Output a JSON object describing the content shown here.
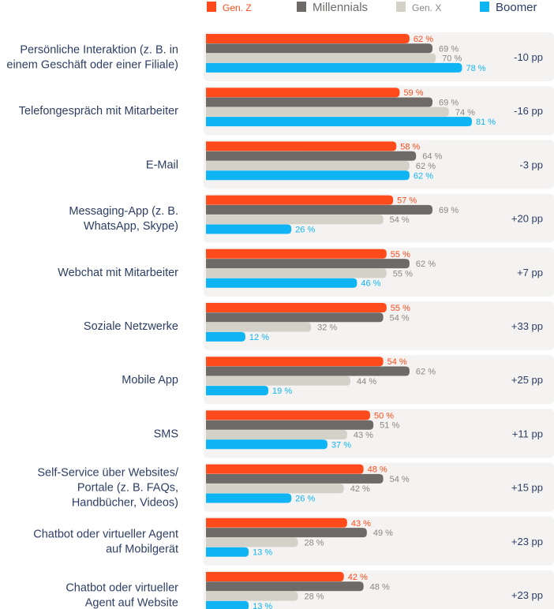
{
  "chart_data": {
    "type": "bar",
    "orientation": "horizontal",
    "value_suffix": " %",
    "xlim": [
      0,
      100
    ],
    "legend_position": "top",
    "series": [
      {
        "name": "Gen. Z",
        "color": "#FF4A1C",
        "values": [
          62,
          59,
          58,
          57,
          55,
          55,
          54,
          50,
          48,
          43,
          42
        ]
      },
      {
        "name": "Millennials",
        "color": "#6E6A67",
        "values": [
          69,
          69,
          64,
          69,
          62,
          54,
          62,
          51,
          54,
          49,
          48
        ]
      },
      {
        "name": "Gen. X",
        "color": "#D4D1C8",
        "values": [
          70,
          74,
          62,
          54,
          55,
          32,
          44,
          43,
          42,
          28,
          28
        ]
      },
      {
        "name": "Boomer",
        "color": "#0FB4F5",
        "values": [
          78,
          81,
          62,
          26,
          46,
          12,
          19,
          37,
          26,
          13,
          13
        ]
      }
    ],
    "categories": [
      [
        "Persönliche Interaktion (z. B. in",
        "einem Geschäft oder einer Filiale)"
      ],
      [
        "Telefongespräch mit Mitarbeiter"
      ],
      [
        "E-Mail"
      ],
      [
        "Messaging-App (z. B.",
        "WhatsApp, Skype)"
      ],
      [
        "Webchat mit Mitarbeiter"
      ],
      [
        "Soziale Netzwerke"
      ],
      [
        "Mobile App"
      ],
      [
        "SMS"
      ],
      [
        "Self-Service über Websites/",
        "Portale (z. B. FAQs,",
        "Handbücher, Videos)"
      ],
      [
        "Chatbot oder virtueller Agent",
        "auf Mobilgerät"
      ],
      [
        "Chatbot oder virtueller",
        "Agent auf Website"
      ]
    ],
    "differences": [
      "-10 pp",
      "-16 pp",
      "-3 pp",
      "+20 pp",
      "+7 pp",
      "+33 pp",
      "+25 pp",
      "+11 pp",
      "+15 pp",
      "+23 pp",
      "+23 pp"
    ]
  },
  "colors": {
    "category_text": "#2C3E63",
    "diff_text": "#2C3E63",
    "row_background": "#F4F3F1",
    "label_gray": "#8A8784"
  }
}
